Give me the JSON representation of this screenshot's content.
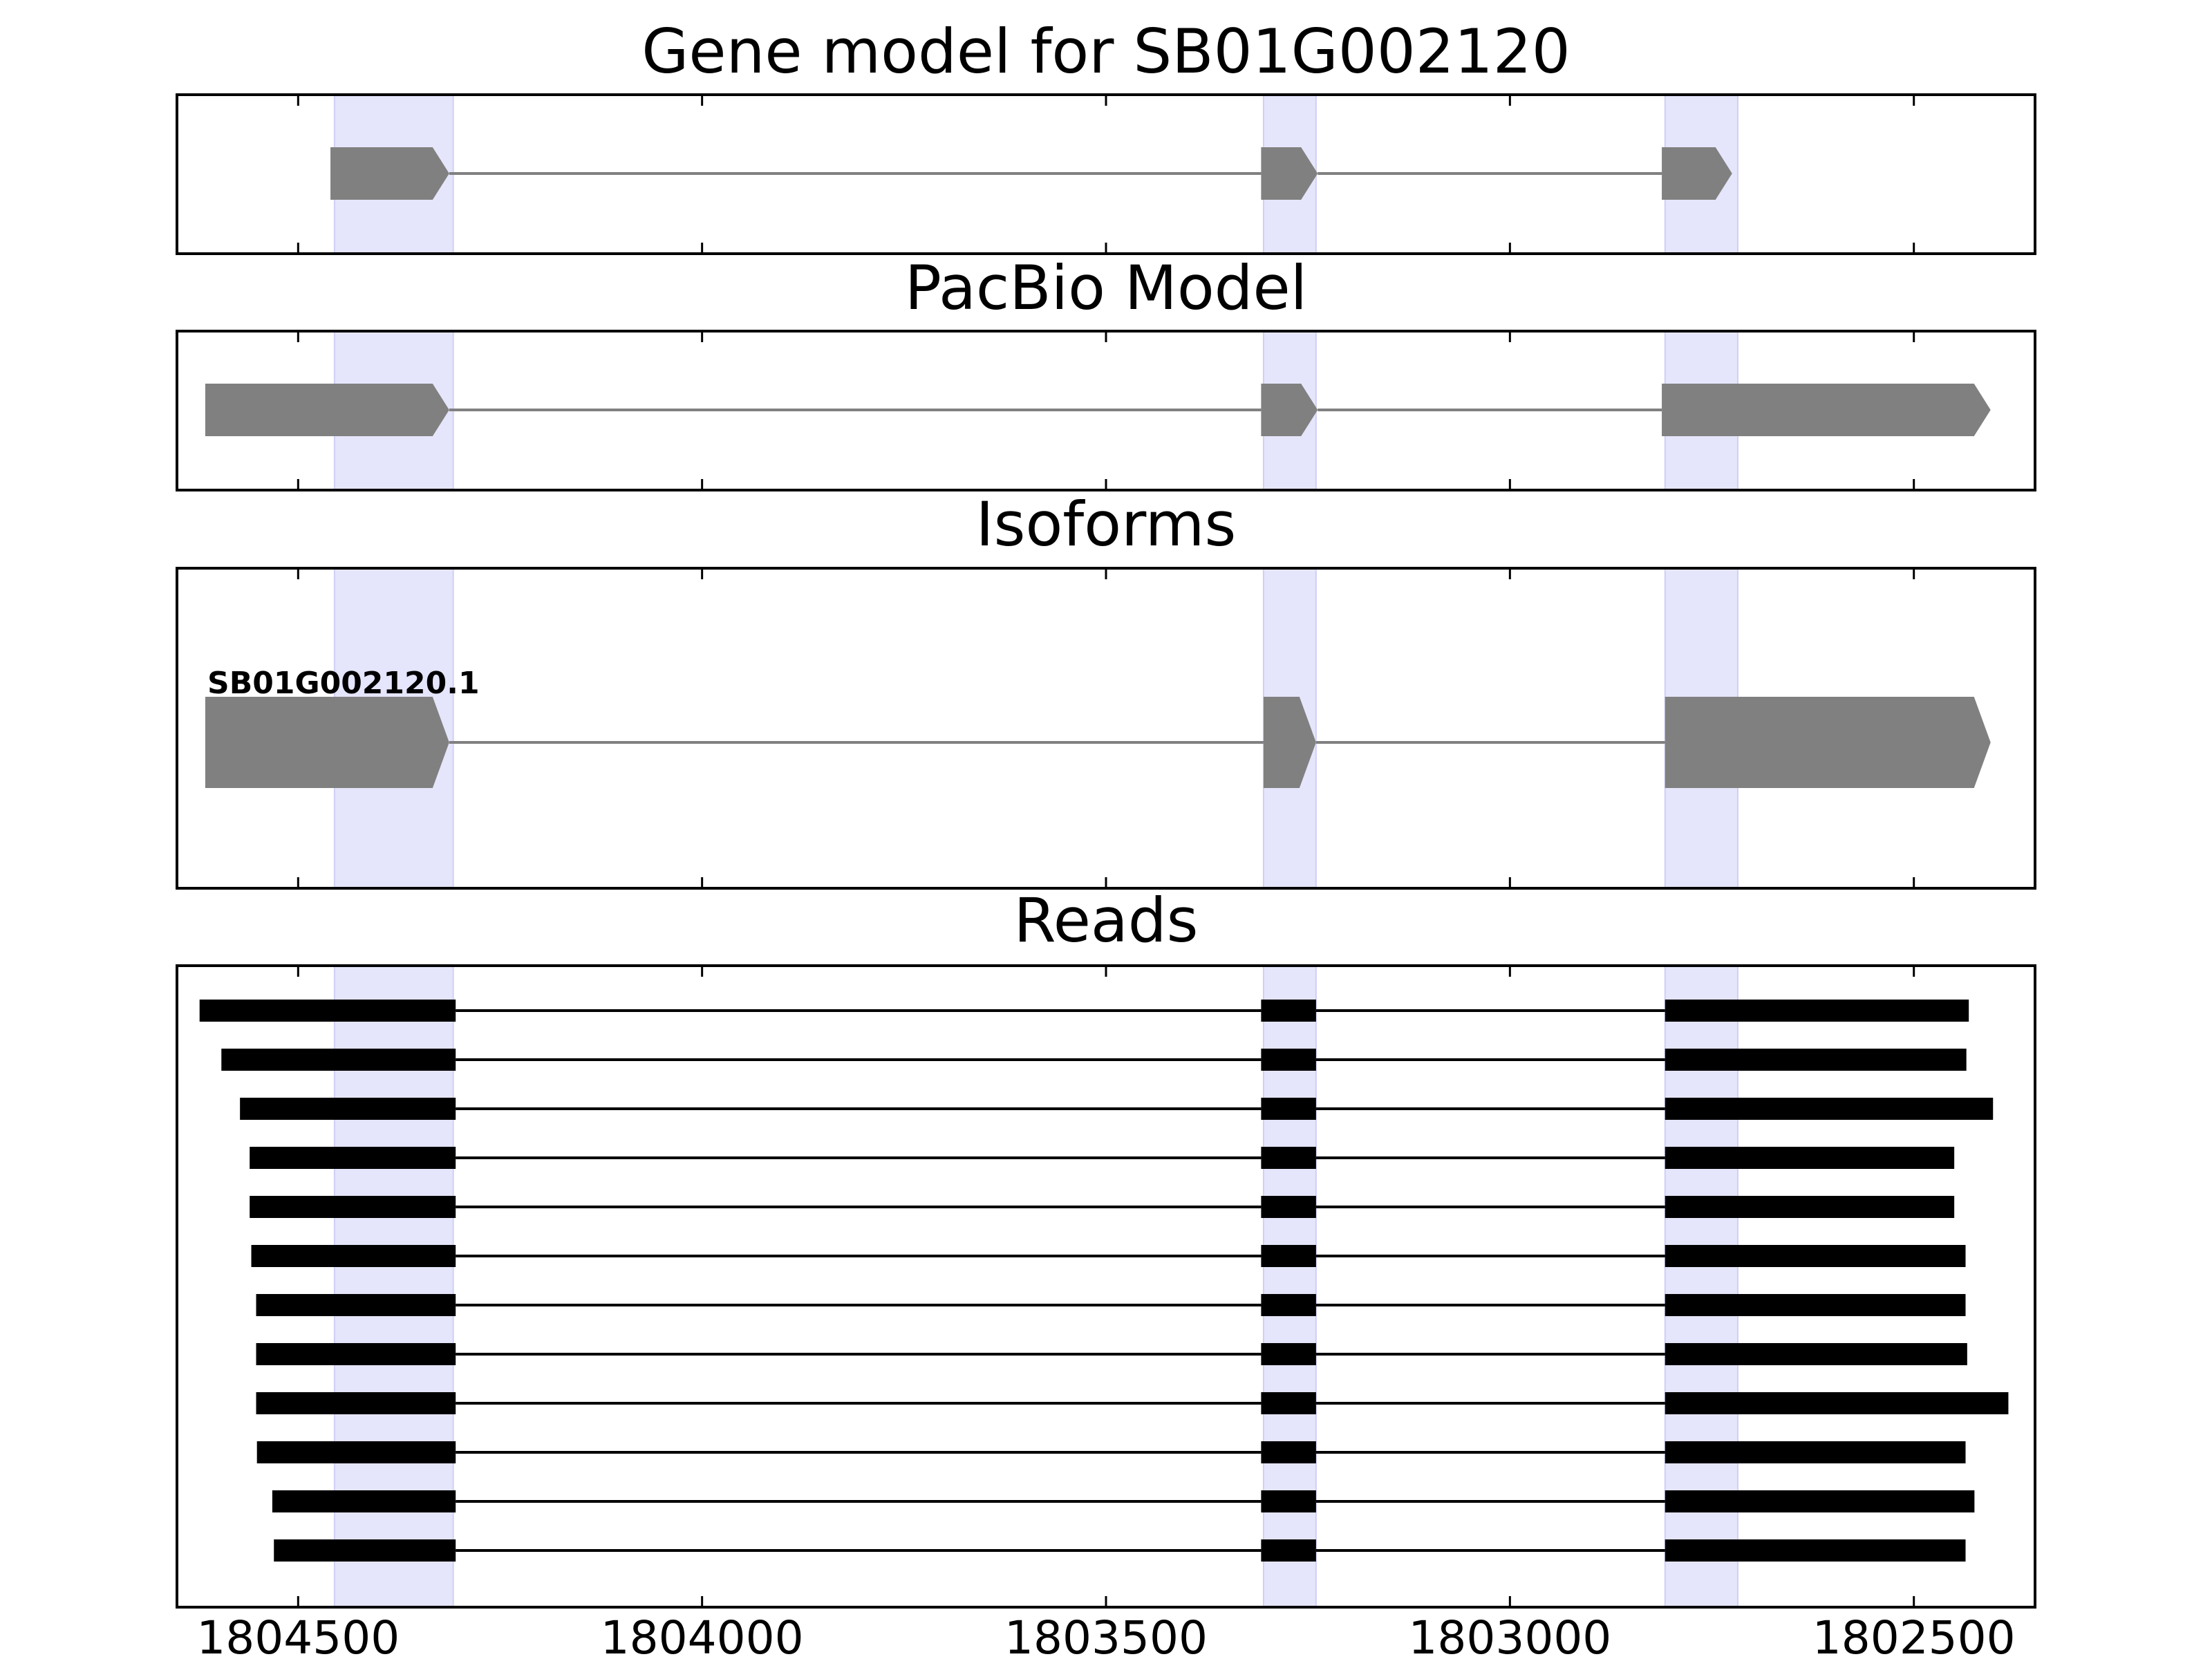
{
  "colors": {
    "background": "#ffffff",
    "highlight": "#e5e5fb",
    "highlight_edge": "#cfcff5",
    "model": "#808080",
    "read": "#000000",
    "frame": "#000000"
  },
  "chart_data": {
    "type": "gene-model",
    "x_axis": {
      "reversed": true,
      "range": [
        1804650,
        1802350
      ],
      "ticks": [
        1804500,
        1804000,
        1803500,
        1803000,
        1802500
      ],
      "tick_labels": [
        "1804500",
        "1804000",
        "1803500",
        "1803000",
        "1802500"
      ]
    },
    "highlight_regions": [
      [
        1804455,
        1804308
      ],
      [
        1803305,
        1803240
      ],
      [
        1802808,
        1802718
      ]
    ],
    "panels": [
      {
        "id": "gene-model",
        "title": "Gene model for SB01G002120",
        "strand": "-",
        "labels": [],
        "tracks": [
          {
            "name": "",
            "exons": [
              [
                1804460,
                1804313
              ],
              [
                1803308,
                1803238
              ],
              [
                1802812,
                1802725
              ]
            ]
          }
        ]
      },
      {
        "id": "pacbio-model",
        "title": "PacBio Model",
        "strand": "-",
        "labels": [],
        "tracks": [
          {
            "name": "",
            "exons": [
              [
                1804615,
                1804313
              ],
              [
                1803308,
                1803238
              ],
              [
                1802812,
                1802405
              ]
            ]
          }
        ]
      },
      {
        "id": "isoforms",
        "title": "Isoforms",
        "strand": "-",
        "labels": [
          "SB01G002120.1"
        ],
        "tracks": [
          {
            "name": "SB01G002120.1",
            "exons": [
              [
                1804615,
                1804313
              ],
              [
                1803305,
                1803240
              ],
              [
                1802808,
                1802405
              ]
            ]
          }
        ]
      },
      {
        "id": "reads",
        "title": "Reads",
        "labels": [],
        "reads": [
          [
            [
              1804622,
              1804305
            ],
            [
              1803308,
              1803240
            ],
            [
              1802808,
              1802432
            ]
          ],
          [
            [
              1804595,
              1804305
            ],
            [
              1803308,
              1803240
            ],
            [
              1802808,
              1802435
            ]
          ],
          [
            [
              1804572,
              1804305
            ],
            [
              1803308,
              1803240
            ],
            [
              1802808,
              1802402
            ]
          ],
          [
            [
              1804560,
              1804305
            ],
            [
              1803308,
              1803240
            ],
            [
              1802808,
              1802450
            ]
          ],
          [
            [
              1804560,
              1804305
            ],
            [
              1803308,
              1803240
            ],
            [
              1802808,
              1802450
            ]
          ],
          [
            [
              1804558,
              1804305
            ],
            [
              1803308,
              1803240
            ],
            [
              1802808,
              1802436
            ]
          ],
          [
            [
              1804552,
              1804305
            ],
            [
              1803308,
              1803240
            ],
            [
              1802808,
              1802436
            ]
          ],
          [
            [
              1804552,
              1804305
            ],
            [
              1803308,
              1803240
            ],
            [
              1802808,
              1802434
            ]
          ],
          [
            [
              1804552,
              1804305
            ],
            [
              1803308,
              1803240
            ],
            [
              1802808,
              1802383
            ]
          ],
          [
            [
              1804551,
              1804305
            ],
            [
              1803308,
              1803240
            ],
            [
              1802808,
              1802436
            ]
          ],
          [
            [
              1804532,
              1804305
            ],
            [
              1803308,
              1803240
            ],
            [
              1802808,
              1802425
            ]
          ],
          [
            [
              1804530,
              1804305
            ],
            [
              1803308,
              1803240
            ],
            [
              1802808,
              1802436
            ]
          ]
        ]
      }
    ]
  }
}
